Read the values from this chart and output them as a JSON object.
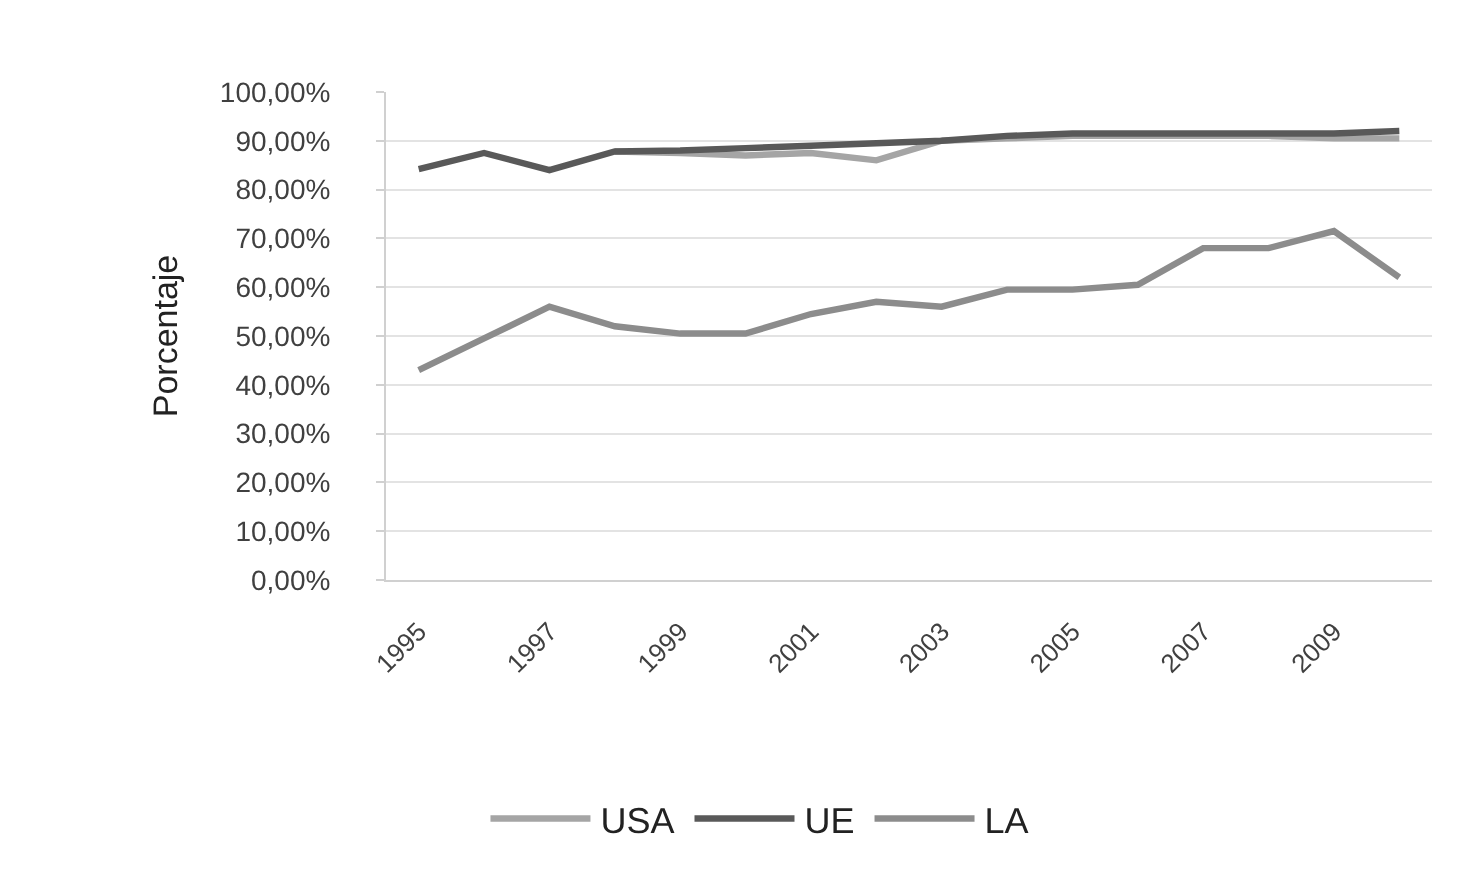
{
  "chart_data": {
    "type": "line",
    "ylabel": "Porcentaje",
    "x": [
      1995,
      1996,
      1997,
      1998,
      1999,
      2000,
      2001,
      2002,
      2003,
      2004,
      2005,
      2006,
      2007,
      2008,
      2009,
      2010
    ],
    "xlim": [
      1994.5,
      2010.5
    ],
    "xticks": [
      1995,
      1997,
      1999,
      2001,
      2003,
      2005,
      2007,
      2009
    ],
    "ylim": [
      0,
      100
    ],
    "yticks": [
      {
        "value": 0,
        "label": "0,00%"
      },
      {
        "value": 10,
        "label": "10,00%"
      },
      {
        "value": 20,
        "label": "20,00%"
      },
      {
        "value": 30,
        "label": "30,00%"
      },
      {
        "value": 40,
        "label": "40,00%"
      },
      {
        "value": 50,
        "label": "50,00%"
      },
      {
        "value": 60,
        "label": "60,00%"
      },
      {
        "value": 70,
        "label": "70,00%"
      },
      {
        "value": 80,
        "label": "80,00%"
      },
      {
        "value": 90,
        "label": "90,00%"
      },
      {
        "value": 100,
        "label": "100,00%"
      }
    ],
    "grid": "y",
    "legend": "bottom",
    "series": [
      {
        "name": "USA",
        "color": "#a5a5a5",
        "values": [
          null,
          null,
          null,
          87.8,
          87.5,
          87,
          87.5,
          86,
          90,
          90.5,
          91,
          91,
          91,
          91,
          90.5,
          90.5
        ]
      },
      {
        "name": "UE",
        "color": "#595959",
        "values": [
          84.2,
          87.5,
          84,
          87.8,
          88,
          88.5,
          89,
          89.5,
          90,
          91,
          91.5,
          91.5,
          91.5,
          91.5,
          91.5,
          92
        ]
      },
      {
        "name": "LA",
        "color": "#8c8c8c",
        "values": [
          43,
          49.5,
          56,
          52,
          50.5,
          50.5,
          54.5,
          57,
          56,
          59.5,
          59.5,
          60.5,
          68,
          68,
          71.5,
          62
        ]
      }
    ]
  }
}
